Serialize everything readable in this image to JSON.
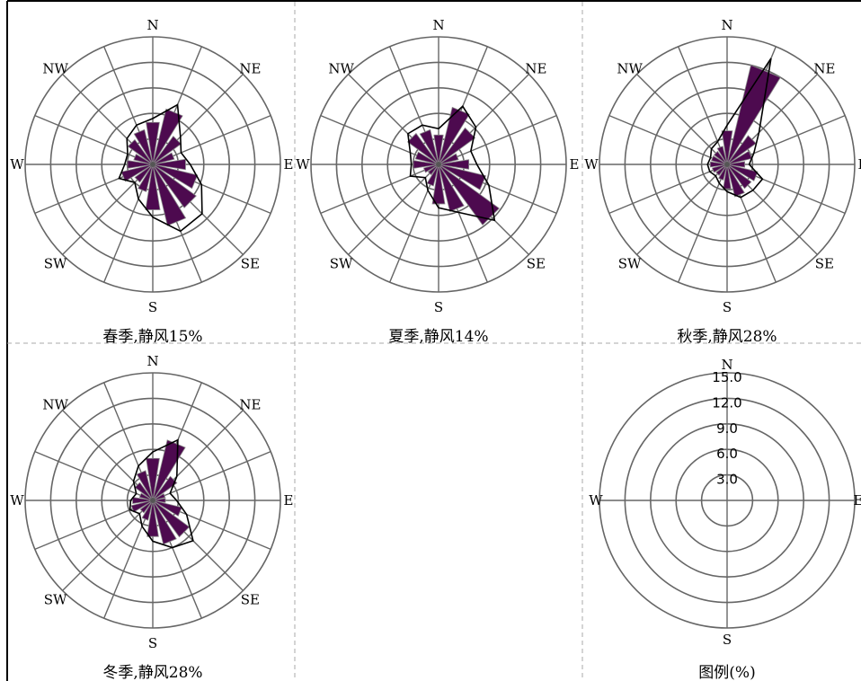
{
  "chart_data": [
    {
      "type": "polar-rose",
      "title": "春季,静风15%",
      "directions": [
        "N",
        "NNE",
        "NE",
        "ENE",
        "E",
        "ESE",
        "SE",
        "SSE",
        "S",
        "SSW",
        "SW",
        "WSW",
        "W",
        "WNW",
        "NW",
        "NNW"
      ],
      "series": [
        {
          "values": [
            5.0,
            6.7,
            4.1,
            2.6,
            3.9,
            5.4,
            6.3,
            7.4,
            5.4,
            3.3,
            2.6,
            3.8,
            3.0,
            2.3,
            3.6,
            4.2
          ],
          "style": "filled"
        },
        {
          "values": [
            5.4,
            7.6,
            4.6,
            3.6,
            4.4,
            6.2,
            8.2,
            8.5,
            6.2,
            4.4,
            3.0,
            4.3,
            3.3,
            3.2,
            4.3,
            5.0
          ],
          "style": "outline"
        }
      ],
      "rmax": 15,
      "rings": [
        3,
        6,
        9,
        12,
        15
      ],
      "spokes": 16,
      "grid": true
    },
    {
      "type": "polar-rose",
      "title": "夏季,静风14%",
      "directions": [
        "N",
        "NNE",
        "NE",
        "ENE",
        "E",
        "ESE",
        "SE",
        "SSE",
        "S",
        "SSW",
        "SW",
        "WSW",
        "W",
        "WNW",
        "NW",
        "NNW"
      ],
      "series": [
        {
          "values": [
            3.5,
            6.9,
            5.3,
            2.4,
            3.6,
            5.7,
            8.8,
            5.7,
            4.7,
            2.6,
            1.5,
            1.8,
            3.0,
            2.8,
            4.5,
            4.2
          ],
          "style": "filled"
        },
        {
          "values": [
            4.2,
            7.4,
            6.2,
            4.1,
            4.5,
            6.4,
            9.3,
            6.1,
            5.1,
            3.3,
            2.2,
            3.6,
            3.2,
            3.6,
            5.1,
            5.0
          ],
          "style": "outline"
        }
      ],
      "rmax": 15,
      "rings": [
        3,
        6,
        9,
        12,
        15
      ],
      "spokes": 16,
      "grid": true
    },
    {
      "type": "polar-rose",
      "title": "秋季,静风28%",
      "directions": [
        "N",
        "NNE",
        "NE",
        "ENE",
        "E",
        "ESE",
        "SE",
        "SSE",
        "S",
        "SSW",
        "SW",
        "WSW",
        "W",
        "WNW",
        "NW",
        "NNW"
      ],
      "series": [
        {
          "values": [
            4.0,
            12.0,
            4.2,
            3.0,
            2.1,
            3.7,
            3.5,
            3.9,
            2.9,
            1.9,
            1.6,
            1.8,
            2.0,
            1.9,
            1.9,
            2.2
          ],
          "style": "filled"
        },
        {
          "values": [
            4.6,
            13.5,
            5.3,
            3.4,
            2.6,
            4.5,
            4.3,
            4.2,
            3.2,
            2.4,
            1.9,
            2.2,
            2.3,
            2.1,
            2.6,
            2.9
          ],
          "style": "outline"
        }
      ],
      "rmax": 15,
      "rings": [
        3,
        6,
        9,
        12,
        15
      ],
      "spokes": 16,
      "grid": true
    },
    {
      "type": "polar-rose",
      "title": "冬季,静风28%",
      "directions": [
        "N",
        "NNE",
        "NE",
        "ENE",
        "E",
        "ESE",
        "SE",
        "SSE",
        "S",
        "SSW",
        "SW",
        "WSW",
        "W",
        "WNW",
        "NW",
        "NNW"
      ],
      "series": [
        {
          "values": [
            5.0,
            7.3,
            3.5,
            1.5,
            1.5,
            3.5,
            5.3,
            5.3,
            4.3,
            2.4,
            1.8,
            2.6,
            2.4,
            1.6,
            2.6,
            3.6
          ],
          "style": "filled"
        },
        {
          "values": [
            5.7,
            7.7,
            4.0,
            2.2,
            2.8,
            4.3,
            6.7,
            6.0,
            4.8,
            3.3,
            2.2,
            2.9,
            2.6,
            2.1,
            3.2,
            4.4
          ],
          "style": "outline"
        }
      ],
      "rmax": 15,
      "rings": [
        3,
        6,
        9,
        12,
        15
      ],
      "spokes": 16,
      "grid": true
    },
    {
      "type": "polar-legend",
      "title": "图例(%)",
      "ring_labels": [
        "15.0",
        "12.0",
        "9.0",
        "6.0",
        "3.0"
      ],
      "rings": [
        3,
        6,
        9,
        12,
        15
      ],
      "rmax": 15
    }
  ],
  "dir_labels": [
    "N",
    "NE",
    "E",
    "SE",
    "S",
    "SW",
    "W",
    "NW"
  ],
  "legend_dir_labels": [
    "N",
    "E",
    "S",
    "W"
  ],
  "colors": {
    "fill": "#4d0a4f",
    "outline": "#000000",
    "grid": "#666666",
    "divider": "#aaaaaa"
  }
}
